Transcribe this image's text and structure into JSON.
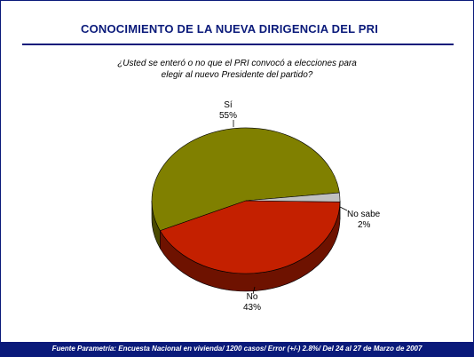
{
  "title": "CONOCIMIENTO DE LA NUEVA DIRIGENCIA DEL PRI",
  "footer": "Fuente Parametría: Encuesta Nacional en vivienda/ 1200 casos/ Error (+/-) 2.8%/ Del 24 al 27 de Marzo de 2007",
  "chart_data": {
    "type": "pie",
    "title": "",
    "question_lines": [
      "¿Usted se enteró o no que el PRI convocó a elecciones para",
      "elegir al nuevo Presidente del partido?"
    ],
    "slices": [
      {
        "label": "Sí",
        "value": 55,
        "value_label": "55%",
        "color": "#808000",
        "side_color": "#4a4a00"
      },
      {
        "label": "No",
        "value": 43,
        "value_label": "43%",
        "color": "#c42000",
        "side_color": "#6e1200"
      },
      {
        "label": "No sabe",
        "value": 2,
        "value_label": "2%",
        "color": "#c0c0c0",
        "side_color": "#7a7a7a"
      }
    ],
    "legend": "none",
    "style": "3d"
  },
  "colors": {
    "frame": "#0a1a7a",
    "title": "#0a1a7a",
    "footer_bg": "#0a1a7a",
    "footer_text": "#ffffff"
  }
}
